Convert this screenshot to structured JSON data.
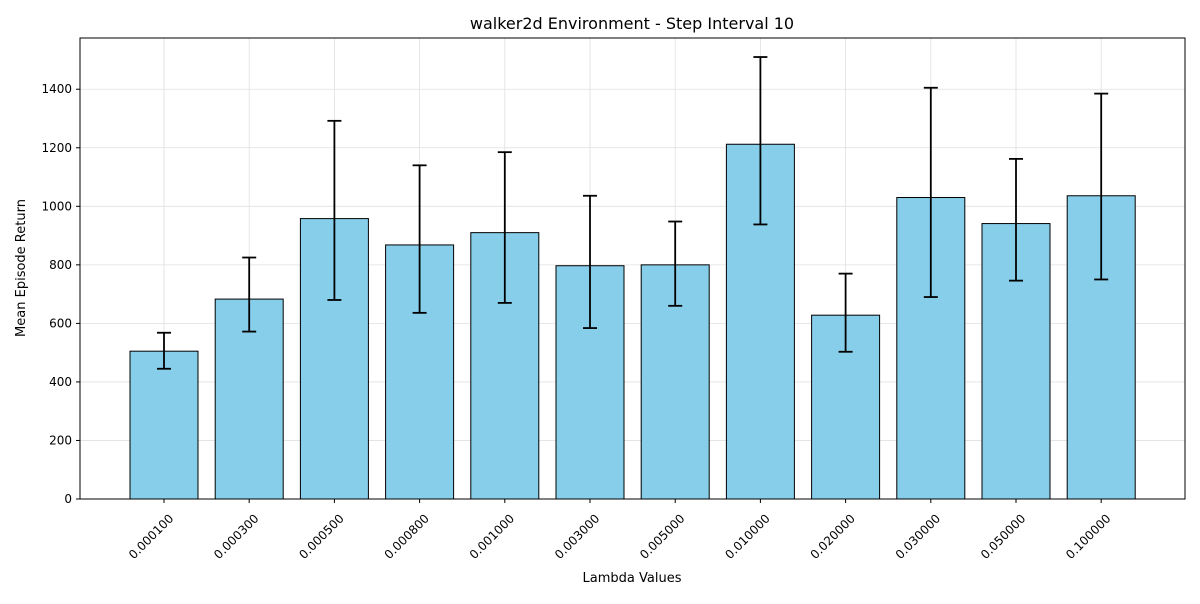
{
  "chart_data": {
    "type": "bar",
    "title": "walker2d Environment - Step Interval 10",
    "xlabel": "Lambda Values",
    "ylabel": "Mean Episode Return",
    "categories": [
      "0.000100",
      "0.000300",
      "0.000500",
      "0.000800",
      "0.001000",
      "0.003000",
      "0.005000",
      "0.010000",
      "0.020000",
      "0.030000",
      "0.050000",
      "0.100000"
    ],
    "values": [
      505,
      683,
      958,
      868,
      910,
      797,
      800,
      1212,
      628,
      1030,
      941,
      1036
    ],
    "error_low": [
      445,
      572,
      680,
      636,
      670,
      584,
      660,
      938,
      503,
      690,
      746,
      750
    ],
    "error_high": [
      568,
      825,
      1292,
      1140,
      1185,
      1036,
      948,
      1510,
      770,
      1405,
      1162,
      1385
    ],
    "ylim": [
      0,
      1575
    ],
    "yticks": [
      0,
      200,
      400,
      600,
      800,
      1000,
      1200,
      1400
    ],
    "grid": true,
    "colors": {
      "bar_fill": "#87ceeb",
      "bar_edge": "#000000",
      "grid": "#e0e0e0",
      "error_bar": "#000000"
    }
  }
}
